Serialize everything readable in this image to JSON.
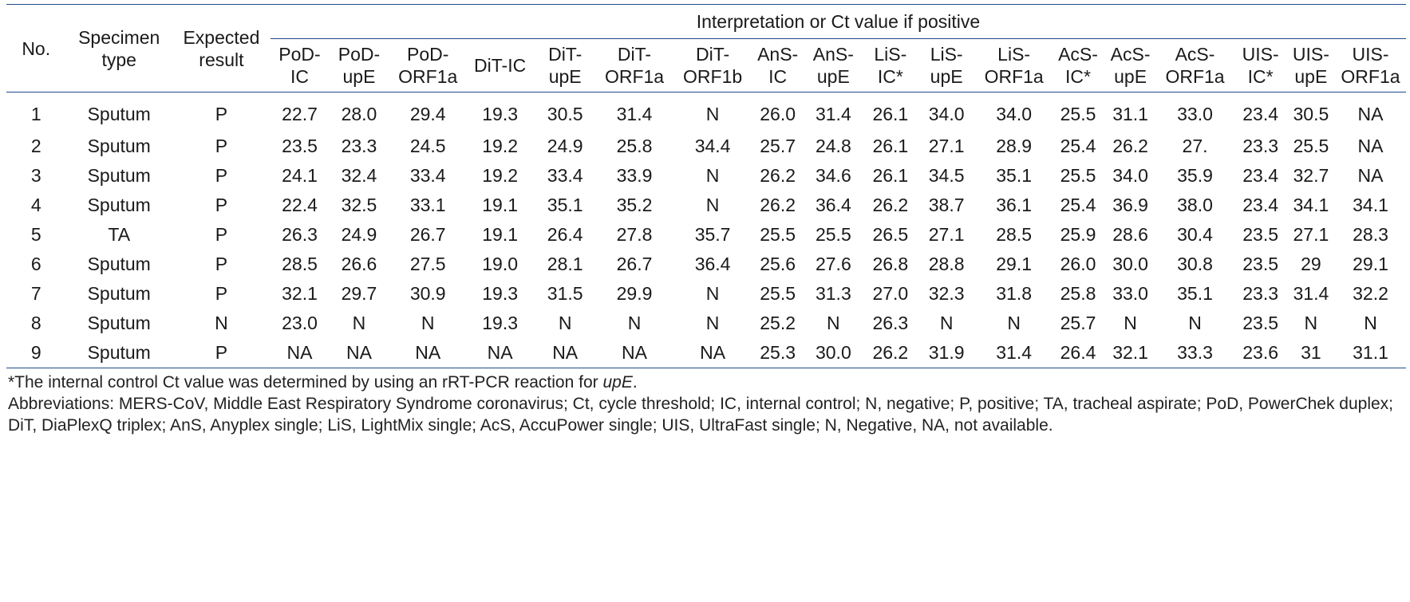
{
  "header": {
    "no": "No.",
    "specimen_type": [
      "Specimen",
      "type"
    ],
    "expected_result": [
      "Expected",
      "result"
    ],
    "interpretation": "Interpretation or Ct value if positive",
    "columns": [
      [
        "PoD-",
        "IC"
      ],
      [
        "PoD-",
        "upE"
      ],
      [
        "PoD-",
        "ORF1a"
      ],
      [
        "DiT-IC",
        ""
      ],
      [
        "DiT-",
        "upE"
      ],
      [
        "DiT-",
        "ORF1a"
      ],
      [
        "DiT-",
        "ORF1b"
      ],
      [
        "AnS-",
        "IC"
      ],
      [
        "AnS-",
        "upE"
      ],
      [
        "LiS-",
        "IC*"
      ],
      [
        "LiS-",
        "upE"
      ],
      [
        "LiS-",
        "ORF1a"
      ],
      [
        "AcS-",
        "IC*"
      ],
      [
        "AcS-",
        "upE"
      ],
      [
        "AcS-",
        "ORF1a"
      ],
      [
        "UIS-",
        "IC*"
      ],
      [
        "UIS-",
        "upE"
      ],
      [
        "UIS-",
        "ORF1a"
      ]
    ]
  },
  "rows": [
    [
      "1",
      "Sputum",
      "P",
      "22.7",
      "28.0",
      "29.4",
      "19.3",
      "30.5",
      "31.4",
      "N",
      "26.0",
      "31.4",
      "26.1",
      "34.0",
      "34.0",
      "25.5",
      "31.1",
      "33.0",
      "23.4",
      "30.5",
      "NA"
    ],
    [
      "2",
      "Sputum",
      "P",
      "23.5",
      "23.3",
      "24.5",
      "19.2",
      "24.9",
      "25.8",
      "34.4",
      "25.7",
      "24.8",
      "26.1",
      "27.1",
      "28.9",
      "25.4",
      "26.2",
      "27.",
      "23.3",
      "25.5",
      "NA"
    ],
    [
      "3",
      "Sputum",
      "P",
      "24.1",
      "32.4",
      "33.4",
      "19.2",
      "33.4",
      "33.9",
      "N",
      "26.2",
      "34.6",
      "26.1",
      "34.5",
      "35.1",
      "25.5",
      "34.0",
      "35.9",
      "23.4",
      "32.7",
      "NA"
    ],
    [
      "4",
      "Sputum",
      "P",
      "22.4",
      "32.5",
      "33.1",
      "19.1",
      "35.1",
      "35.2",
      "N",
      "26.2",
      "36.4",
      "26.2",
      "38.7",
      "36.1",
      "25.4",
      "36.9",
      "38.0",
      "23.4",
      "34.1",
      "34.1"
    ],
    [
      "5",
      "TA",
      "P",
      "26.3",
      "24.9",
      "26.7",
      "19.1",
      "26.4",
      "27.8",
      "35.7",
      "25.5",
      "25.5",
      "26.5",
      "27.1",
      "28.5",
      "25.9",
      "28.6",
      "30.4",
      "23.5",
      "27.1",
      "28.3"
    ],
    [
      "6",
      "Sputum",
      "P",
      "28.5",
      "26.6",
      "27.5",
      "19.0",
      "28.1",
      "26.7",
      "36.4",
      "25.6",
      "27.6",
      "26.8",
      "28.8",
      "29.1",
      "26.0",
      "30.0",
      "30.8",
      "23.5",
      "29",
      "29.1"
    ],
    [
      "7",
      "Sputum",
      "P",
      "32.1",
      "29.7",
      "30.9",
      "19.3",
      "31.5",
      "29.9",
      "N",
      "25.5",
      "31.3",
      "27.0",
      "32.3",
      "31.8",
      "25.8",
      "33.0",
      "35.1",
      "23.3",
      "31.4",
      "32.2"
    ],
    [
      "8",
      "Sputum",
      "N",
      "23.0",
      "N",
      "N",
      "19.3",
      "N",
      "N",
      "N",
      "25.2",
      "N",
      "26.3",
      "N",
      "N",
      "25.7",
      "N",
      "N",
      "23.5",
      "N",
      "N"
    ],
    [
      "9",
      "Sputum",
      "P",
      "NA",
      "NA",
      "NA",
      "NA",
      "NA",
      "NA",
      "NA",
      "25.3",
      "30.0",
      "26.2",
      "31.9",
      "31.4",
      "26.4",
      "32.1",
      "33.3",
      "23.6",
      "31",
      "31.1"
    ]
  ],
  "notes": {
    "footnote_prefix": "*The internal control Ct value was determined by using an rRT-PCR reaction for ",
    "footnote_italic": "upE",
    "footnote_suffix": ".",
    "abbreviations": "Abbreviations: MERS-CoV, Middle East Respiratory Syndrome coronavirus; Ct, cycle threshold; IC, internal control; N, negative; P, positive; TA, tracheal aspirate; PoD, PowerChek duplex; DiT, DiaPlexQ triplex; AnS, Anyplex single; LiS, LightMix single; AcS, AccuPower single; UIS, UltraFast single; N, Negative, NA, not available."
  }
}
